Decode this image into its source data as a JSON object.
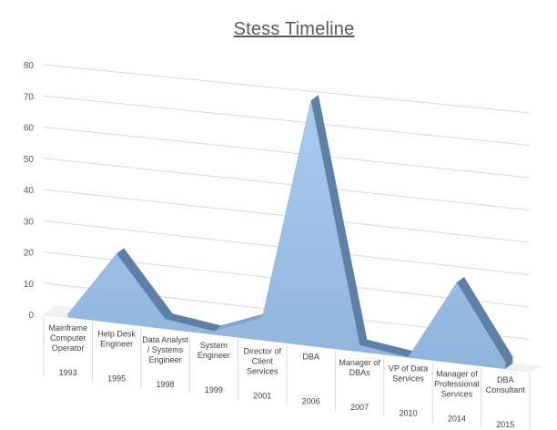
{
  "chart_data": {
    "type": "area",
    "title": "Stess Timeline",
    "xlabel": "",
    "ylabel": "",
    "ylim": [
      0,
      80
    ],
    "yticks": [
      "0",
      "10",
      "20",
      "30",
      "40",
      "50",
      "60",
      "70",
      "80"
    ],
    "grid": true,
    "legend": "none",
    "categories": [
      {
        "label": [
          "Mainframe",
          "Computer",
          "Operator"
        ],
        "year": "1993"
      },
      {
        "label": [
          "Help Desk",
          "Engineer"
        ],
        "year": "1995"
      },
      {
        "label": [
          "Data Analyst",
          "/ Systems",
          "Engineer"
        ],
        "year": "1998"
      },
      {
        "label": [
          "System",
          "Engineer"
        ],
        "year": "1999"
      },
      {
        "label": [
          "Director of",
          "Client",
          "Services"
        ],
        "year": "2001"
      },
      {
        "label": [
          "DBA"
        ],
        "year": "2006"
      },
      {
        "label": [
          "Manager of",
          "DBAs"
        ],
        "year": "2007"
      },
      {
        "label": [
          "VP of Data",
          "Services"
        ],
        "year": "2010"
      },
      {
        "label": [
          "Manager of",
          "Professional",
          "Services"
        ],
        "year": "2014"
      },
      {
        "label": [
          "DBA",
          "Consultant"
        ],
        "year": "2015"
      }
    ],
    "series": [
      {
        "values": [
          1,
          22,
          3,
          1,
          7,
          77,
          2,
          0,
          25,
          2
        ],
        "color": "#9DC3E6"
      }
    ]
  }
}
